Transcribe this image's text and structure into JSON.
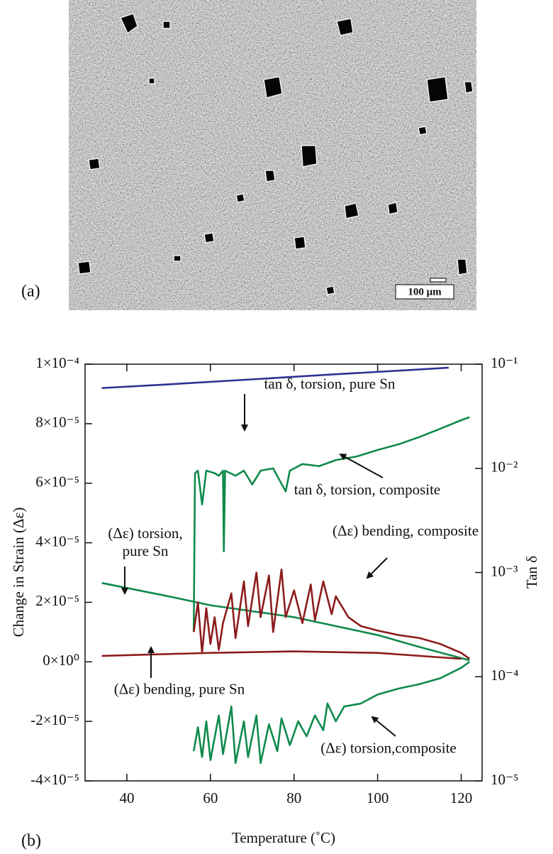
{
  "figure": {
    "panel_a_label": "(a)",
    "scale_bar": "100 μm",
    "panel_b_label": "(b)"
  },
  "chart_data": {
    "type": "line",
    "xlabel": "Temperature (˚C)",
    "ylabel": "Change in Strain (Δε)",
    "y2label": "Tan δ",
    "xlim": [
      30,
      125
    ],
    "xticks": [
      40,
      60,
      80,
      100,
      120
    ],
    "ylim": [
      -4e-05,
      0.0001
    ],
    "yticks": [
      {
        "value": -4e-05,
        "label": "-4×10⁻⁵"
      },
      {
        "value": -2e-05,
        "label": "-2×10⁻⁵"
      },
      {
        "value": 0,
        "label": "0×10⁰"
      },
      {
        "value": 2e-05,
        "label": "2×10⁻⁵"
      },
      {
        "value": 4e-05,
        "label": "4×10⁻⁵"
      },
      {
        "value": 6e-05,
        "label": "6×10⁻⁵"
      },
      {
        "value": 8e-05,
        "label": "8×10⁻⁵"
      },
      {
        "value": 0.0001,
        "label": "1×10⁻⁴"
      }
    ],
    "y2lim": [
      1e-05,
      0.1
    ],
    "y2scale": "log",
    "y2ticks": [
      {
        "value": 1e-05,
        "label": "10⁻⁵"
      },
      {
        "value": 0.0001,
        "label": "10⁻⁴"
      },
      {
        "value": 0.001,
        "label": "10⁻³"
      },
      {
        "value": 0.01,
        "label": "10⁻²"
      },
      {
        "value": 0.1,
        "label": "10⁻¹"
      }
    ],
    "grid": false,
    "series": [
      {
        "name": "tan δ, torsion, pure Sn",
        "color": "#2e3192",
        "axis": "y2",
        "x": [
          34,
          50,
          70,
          90,
          110,
          117
        ],
        "values": [
          0.059,
          0.064,
          0.0715,
          0.08,
          0.089,
          0.0925
        ]
      },
      {
        "name": "tan δ, torsion, composite",
        "color": "#0f8a4c",
        "axis": "y2",
        "x": [
          56,
          56.3,
          57,
          58,
          59,
          61,
          62,
          63,
          63.2,
          63.5,
          66,
          68,
          70,
          72,
          75,
          78,
          79,
          82,
          86,
          90,
          95,
          100,
          105,
          110,
          115,
          120,
          122
        ],
        "values": [
          0.00027,
          0.009,
          0.0095,
          0.0045,
          0.0095,
          0.009,
          0.0085,
          0.0095,
          0.0016,
          0.0095,
          0.0085,
          0.0095,
          0.007,
          0.0095,
          0.01,
          0.006,
          0.0095,
          0.011,
          0.0105,
          0.012,
          0.013,
          0.015,
          0.017,
          0.02,
          0.024,
          0.029,
          0.031
        ]
      },
      {
        "name": "(Δε) torsion,\npure Sn",
        "color": "#0f8a4c",
        "x": [
          34,
          50,
          60,
          70,
          80,
          90,
          100,
          110,
          118,
          122
        ],
        "values": [
          2.65e-05,
          2.2e-05,
          1.9e-05,
          1.7e-05,
          1.5e-05,
          1.2e-05,
          9e-06,
          5e-06,
          2e-06,
          5e-07
        ]
      },
      {
        "name": "(Δε) bending, composite",
        "color": "#8c1c1c",
        "x": [
          56,
          57,
          58,
          59,
          60,
          61,
          62,
          63,
          65,
          66,
          68,
          69,
          71,
          72,
          74,
          75,
          77,
          78,
          80,
          82,
          84,
          85,
          87,
          89,
          90,
          93,
          96,
          100,
          105,
          110,
          115,
          120,
          122
        ],
        "values": [
          1e-05,
          2e-05,
          3e-06,
          1.8e-05,
          6e-06,
          1.5e-05,
          4e-06,
          1.3e-05,
          2.3e-05,
          8e-06,
          2.7e-05,
          1.2e-05,
          3e-05,
          1.5e-05,
          2.9e-05,
          1e-05,
          3.1e-05,
          1.5e-05,
          2.4e-05,
          1.3e-05,
          2.6e-05,
          1.4e-05,
          2.7e-05,
          1.6e-05,
          2.2e-05,
          1.5e-05,
          1.2e-05,
          1.05e-05,
          9e-06,
          8e-06,
          6e-06,
          3e-06,
          1e-06
        ]
      },
      {
        "name": "(Δε) bending, pure Sn",
        "color": "#8c1c1c",
        "x": [
          34,
          60,
          80,
          100,
          115,
          120
        ],
        "values": [
          2e-06,
          3e-06,
          3.5e-06,
          3e-06,
          1.5e-06,
          1e-06
        ]
      },
      {
        "name": "(Δε) torsion,composite",
        "color": "#0f8a4c",
        "x": [
          56,
          57,
          58,
          59,
          60,
          62,
          63,
          65,
          66,
          68,
          69,
          71,
          72,
          74,
          76,
          77,
          79,
          81,
          83,
          85,
          87,
          88,
          90,
          92,
          96,
          100,
          105,
          110,
          115,
          120,
          122
        ],
        "values": [
          -3e-05,
          -2.2e-05,
          -3.2e-05,
          -2e-05,
          -3.3e-05,
          -1.8e-05,
          -3.1e-05,
          -1.5e-05,
          -3.4e-05,
          -2e-05,
          -3.2e-05,
          -1.8e-05,
          -3.4e-05,
          -2.1e-05,
          -3e-05,
          -1.9e-05,
          -2.8e-05,
          -2e-05,
          -2.5e-05,
          -1.8e-05,
          -2.3e-05,
          -1.4e-05,
          -2e-05,
          -1.5e-05,
          -1.4e-05,
          -1.1e-05,
          -9e-06,
          -7.5e-06,
          -5.5e-06,
          -2e-06,
          0
        ]
      }
    ]
  }
}
